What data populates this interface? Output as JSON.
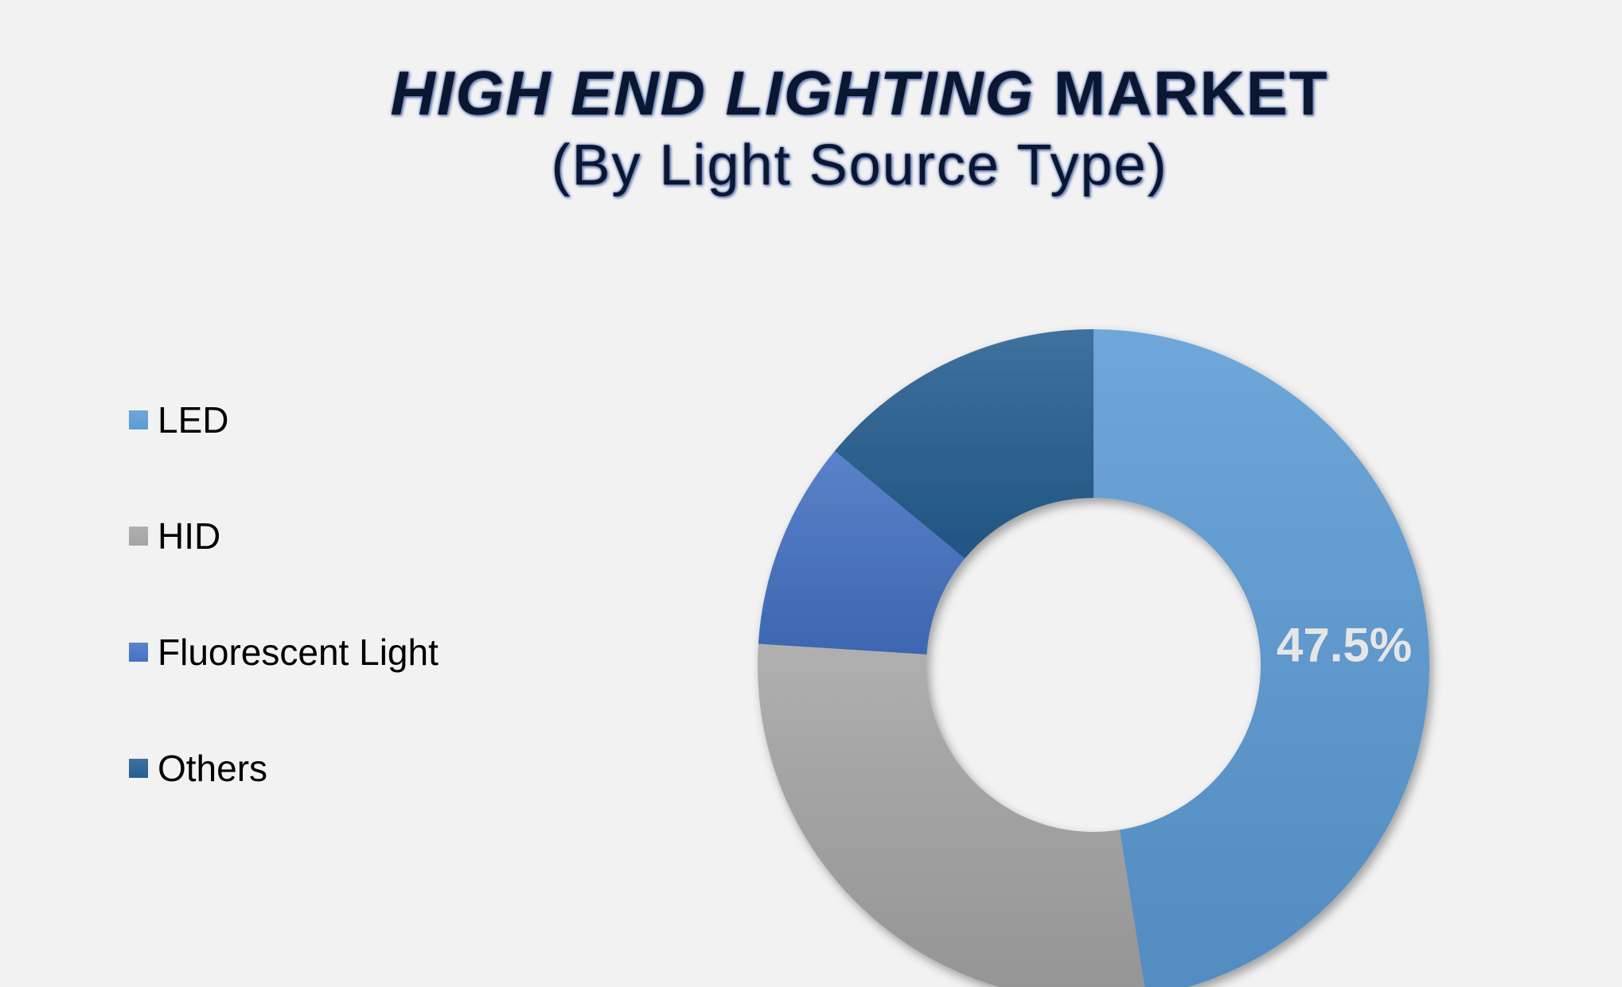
{
  "chart_data": {
    "type": "pie",
    "title_italic": "HIGH END LIGHTING",
    "title_rest": "MARKET",
    "subtitle": "(By Light Source Type)",
    "legend_position": "left",
    "categories": [
      "LED",
      "HID",
      "Fluorescent Light",
      "Others"
    ],
    "values": [
      47.5,
      28.5,
      10.0,
      14.0
    ],
    "data_labels": [
      "47.5%",
      "",
      "",
      ""
    ],
    "colors": [
      "#5b9bd5",
      "#a5a5a5",
      "#4472c4",
      "#255e91"
    ],
    "donut": true
  }
}
